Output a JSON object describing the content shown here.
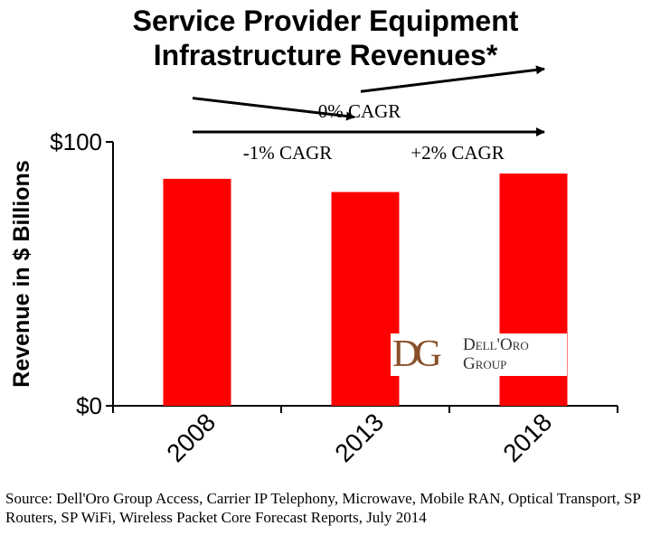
{
  "chart_data": {
    "type": "bar",
    "title_lines": [
      "Service Provider Equipment",
      "Infrastructure Revenues*"
    ],
    "ylabel": "Revenue in $ Billions",
    "categories": [
      "2008",
      "2013",
      "2018"
    ],
    "values": [
      86,
      81,
      88
    ],
    "ylim": [
      0,
      100
    ],
    "yticks": [
      {
        "value": 0,
        "label": "$0"
      },
      {
        "value": 100,
        "label": "$100"
      }
    ],
    "bar_color": "#ff0000",
    "grid": false,
    "annotations": [
      {
        "text": "0% CAGR",
        "from": "2008",
        "to": "2018",
        "level": 100
      },
      {
        "text": "-1% CAGR",
        "from": "2008",
        "to": "2013",
        "level": 82
      },
      {
        "text": "+2% CAGR",
        "from": "2013",
        "to": "2018",
        "level": 90
      }
    ],
    "logo": {
      "mark": "DG",
      "name_lines": [
        "Dell'Oro",
        "Group"
      ]
    }
  },
  "source": "Source: Dell'Oro Group Access, Carrier IP Telephony, Microwave, Mobile RAN, Optical Transport, SP Routers, SP WiFi, Wireless Packet Core Forecast Reports, July 2014"
}
